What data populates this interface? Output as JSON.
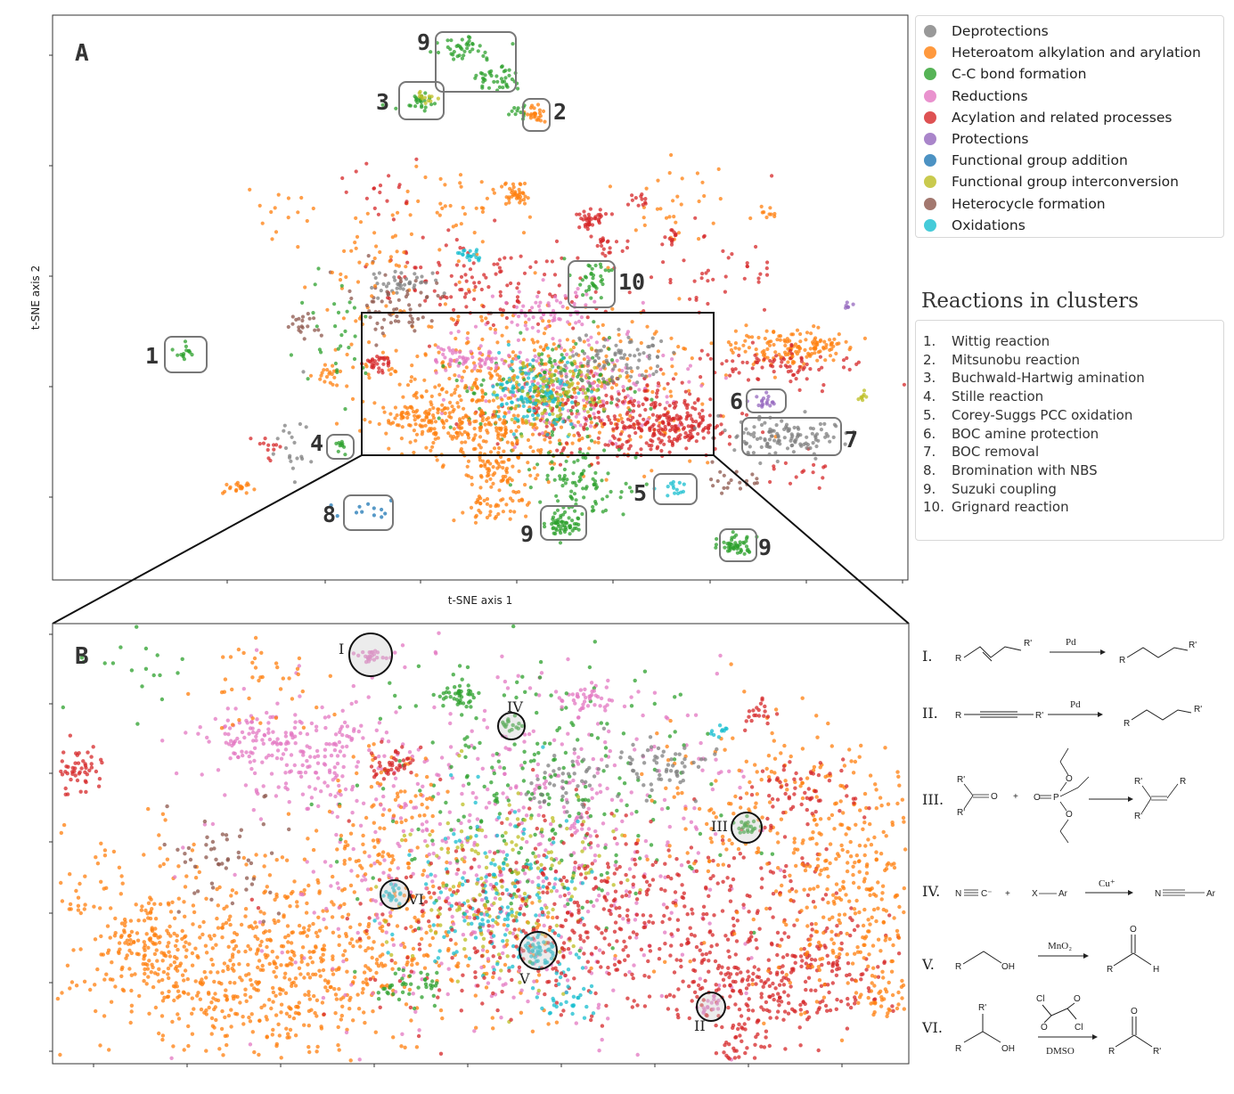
{
  "chart_data": [
    {
      "type": "scatter",
      "panel": "A",
      "xlabel": "t-SNE axis 1",
      "ylabel": "t-SNE axis 2",
      "legend_position": "right-top",
      "series": [
        {
          "name": "Deprotections",
          "color": "#7f7f7f"
        },
        {
          "name": "Heteroatom alkylation and arylation",
          "color": "#ff7f0e"
        },
        {
          "name": "C-C bond formation",
          "color": "#2ca02c"
        },
        {
          "name": "Reductions",
          "color": "#e377c2"
        },
        {
          "name": "Acylation and related processes",
          "color": "#d62728"
        },
        {
          "name": "Protections",
          "color": "#9467bd"
        },
        {
          "name": "Functional group addition",
          "color": "#1f77b4"
        },
        {
          "name": "Functional group interconversion",
          "color": "#bcbd22"
        },
        {
          "name": "Heterocycle formation",
          "color": "#8c564b"
        },
        {
          "name": "Oxidations",
          "color": "#17becf"
        }
      ],
      "cluster_labels": [
        "1",
        "2",
        "3",
        "4",
        "5",
        "6",
        "7",
        "8",
        "9",
        "9",
        "9",
        "10"
      ]
    },
    {
      "type": "scatter",
      "panel": "B",
      "cluster_labels": [
        "I",
        "II",
        "III",
        "IV",
        "V",
        "VI"
      ]
    }
  ],
  "panels": {
    "a": "A",
    "b": "B"
  },
  "clusters": {
    "title": "Reactions in clusters",
    "items": [
      {
        "num": "1.",
        "name": "Wittig reaction"
      },
      {
        "num": "2.",
        "name": "Mitsunobu reaction"
      },
      {
        "num": "3.",
        "name": "Buchwald-Hartwig amination"
      },
      {
        "num": "4.",
        "name": "Stille reaction"
      },
      {
        "num": "5.",
        "name": "Corey-Suggs PCC oxidation"
      },
      {
        "num": "6.",
        "name": "BOC amine protection"
      },
      {
        "num": "7.",
        "name": "BOC removal"
      },
      {
        "num": "8.",
        "name": "Bromination with NBS"
      },
      {
        "num": "9.",
        "name": "Suzuki coupling"
      },
      {
        "num": "10.",
        "name": "Grignard reaction"
      }
    ]
  },
  "schemes": [
    {
      "roman": "I.",
      "reagent": "Pd"
    },
    {
      "roman": "II.",
      "reagent": "Pd"
    },
    {
      "roman": "III."
    },
    {
      "roman": "IV.",
      "reagent": "Cu⁺"
    },
    {
      "roman": "V.",
      "reagent": "MnO₂"
    },
    {
      "roman": "VI.",
      "reagent": "DMSO"
    }
  ],
  "chem": {
    "R": "R",
    "Rp": "R'",
    "O": "O",
    "OH": "OH",
    "H": "H",
    "Cl": "Cl",
    "Ar": "Ar",
    "N": "N",
    "C": "C",
    "X": "X",
    "P": "P",
    "plus": "+",
    "cminus": "C⁻"
  }
}
